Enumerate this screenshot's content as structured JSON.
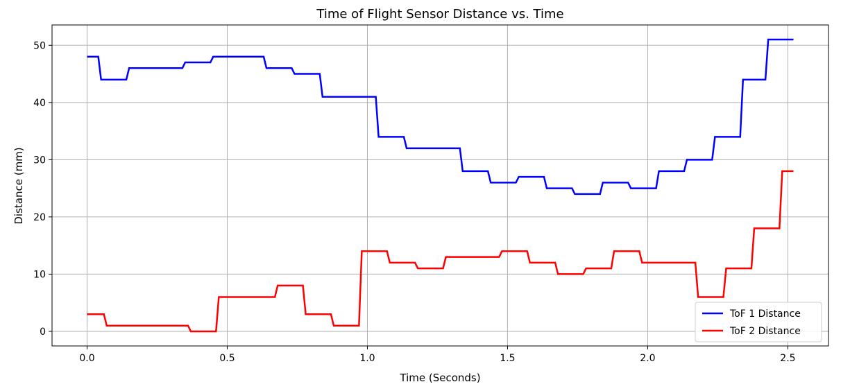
{
  "chart_data": {
    "type": "line",
    "title": "Time of Flight Sensor Distance vs. Time",
    "xlabel": "Time (Seconds)",
    "ylabel": "Distance (mm)",
    "xlim": [
      -0.125,
      2.645
    ],
    "ylim": [
      -2.55,
      53.55
    ],
    "xticks": [
      0.0,
      0.5,
      1.0,
      1.5,
      2.0,
      2.5
    ],
    "xtick_labels": [
      "0.0",
      "0.5",
      "1.0",
      "1.5",
      "2.0",
      "2.5"
    ],
    "yticks": [
      0,
      10,
      20,
      30,
      40,
      50
    ],
    "ytick_labels": [
      "0",
      "10",
      "20",
      "30",
      "40",
      "50"
    ],
    "grid": true,
    "legend_position": "lower-right",
    "series": [
      {
        "name": "ToF 1 Distance",
        "color": "#0000ff",
        "points": [
          [
            0.0,
            48
          ],
          [
            0.04,
            48
          ],
          [
            0.05,
            44
          ],
          [
            0.14,
            44
          ],
          [
            0.15,
            46
          ],
          [
            0.34,
            46
          ],
          [
            0.35,
            47
          ],
          [
            0.44,
            47
          ],
          [
            0.45,
            48
          ],
          [
            0.63,
            48
          ],
          [
            0.64,
            46
          ],
          [
            0.73,
            46
          ],
          [
            0.74,
            45
          ],
          [
            0.83,
            45
          ],
          [
            0.84,
            41
          ],
          [
            1.03,
            41
          ],
          [
            1.04,
            34
          ],
          [
            1.13,
            34
          ],
          [
            1.14,
            32
          ],
          [
            1.33,
            32
          ],
          [
            1.34,
            28
          ],
          [
            1.43,
            28
          ],
          [
            1.44,
            26
          ],
          [
            1.53,
            26
          ],
          [
            1.54,
            27
          ],
          [
            1.63,
            27
          ],
          [
            1.64,
            25
          ],
          [
            1.73,
            25
          ],
          [
            1.74,
            24
          ],
          [
            1.83,
            24
          ],
          [
            1.84,
            26
          ],
          [
            1.93,
            26
          ],
          [
            1.94,
            25
          ],
          [
            2.03,
            25
          ],
          [
            2.04,
            28
          ],
          [
            2.13,
            28
          ],
          [
            2.14,
            30
          ],
          [
            2.23,
            30
          ],
          [
            2.24,
            34
          ],
          [
            2.33,
            34
          ],
          [
            2.34,
            44
          ],
          [
            2.42,
            44
          ],
          [
            2.43,
            51
          ],
          [
            2.52,
            51
          ]
        ]
      },
      {
        "name": "ToF 2 Distance",
        "color": "#ff0000",
        "points": [
          [
            0.0,
            3
          ],
          [
            0.06,
            3
          ],
          [
            0.07,
            1
          ],
          [
            0.36,
            1
          ],
          [
            0.37,
            0
          ],
          [
            0.46,
            0
          ],
          [
            0.47,
            6
          ],
          [
            0.67,
            6
          ],
          [
            0.68,
            8
          ],
          [
            0.77,
            8
          ],
          [
            0.78,
            3
          ],
          [
            0.87,
            3
          ],
          [
            0.88,
            1
          ],
          [
            0.97,
            1
          ],
          [
            0.98,
            14
          ],
          [
            1.07,
            14
          ],
          [
            1.08,
            12
          ],
          [
            1.17,
            12
          ],
          [
            1.18,
            11
          ],
          [
            1.27,
            11
          ],
          [
            1.28,
            13
          ],
          [
            1.47,
            13
          ],
          [
            1.48,
            14
          ],
          [
            1.57,
            14
          ],
          [
            1.58,
            12
          ],
          [
            1.67,
            12
          ],
          [
            1.68,
            10
          ],
          [
            1.77,
            10
          ],
          [
            1.78,
            11
          ],
          [
            1.87,
            11
          ],
          [
            1.88,
            14
          ],
          [
            1.97,
            14
          ],
          [
            1.98,
            12
          ],
          [
            2.17,
            12
          ],
          [
            2.18,
            6
          ],
          [
            2.27,
            6
          ],
          [
            2.28,
            11
          ],
          [
            2.37,
            11
          ],
          [
            2.38,
            18
          ],
          [
            2.47,
            18
          ],
          [
            2.48,
            28
          ],
          [
            2.52,
            28
          ]
        ]
      }
    ]
  }
}
